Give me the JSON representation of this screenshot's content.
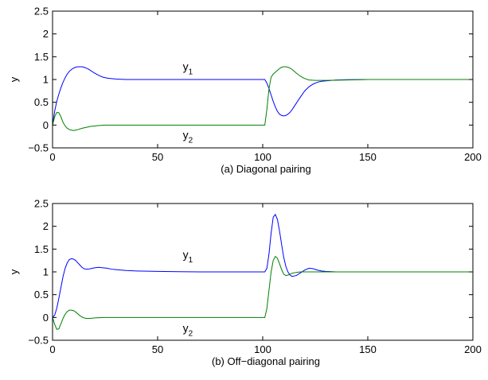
{
  "chart_data": [
    {
      "type": "line",
      "caption": "(a) Diagonal pairing",
      "ylabel": "y",
      "xlim": [
        0,
        200
      ],
      "ylim": [
        -0.5,
        2.5
      ],
      "xticks": [
        0,
        50,
        100,
        150,
        200
      ],
      "yticks": [
        -0.5,
        0,
        0.5,
        1,
        1.5,
        2,
        2.5
      ],
      "xtick_labels": [
        "0",
        "50",
        "100",
        "150",
        "200"
      ],
      "ytick_labels": [
        "−0.5",
        "0",
        "0.5",
        "1",
        "1.5",
        "2",
        "2.5"
      ],
      "grid": false,
      "series": [
        {
          "label": "y",
          "subscript": "1",
          "label_at": [
            62,
            1.2
          ],
          "color": "#0000ff",
          "x": [
            0,
            1,
            2,
            3,
            4,
            5,
            6,
            7,
            8,
            9,
            10,
            11,
            12,
            13,
            14,
            15,
            16,
            17,
            18,
            19,
            20,
            22,
            24,
            26,
            28,
            30,
            35,
            40,
            50,
            60,
            70,
            80,
            90,
            100,
            101,
            102,
            103,
            104,
            105,
            106,
            107,
            108,
            109,
            110,
            111,
            112,
            113,
            114,
            115,
            116,
            118,
            120,
            122,
            124,
            126,
            128,
            130,
            135,
            140,
            150,
            160,
            170,
            180,
            190,
            200
          ],
          "y": [
            0,
            0.3,
            0.52,
            0.68,
            0.82,
            0.94,
            1.04,
            1.12,
            1.18,
            1.22,
            1.25,
            1.27,
            1.28,
            1.28,
            1.28,
            1.27,
            1.25,
            1.23,
            1.2,
            1.17,
            1.14,
            1.09,
            1.05,
            1.03,
            1.02,
            1.01,
            1.0,
            1.0,
            1.0,
            1.0,
            1.0,
            1.0,
            1.0,
            1.0,
            1.0,
            0.92,
            0.8,
            0.66,
            0.52,
            0.4,
            0.3,
            0.24,
            0.21,
            0.2,
            0.21,
            0.24,
            0.28,
            0.34,
            0.41,
            0.48,
            0.62,
            0.75,
            0.84,
            0.9,
            0.94,
            0.96,
            0.97,
            0.99,
            0.995,
            1.0,
            1.0,
            1.0,
            1.0,
            1.0,
            1.0
          ]
        },
        {
          "label": "y",
          "subscript": "2",
          "label_at": [
            62,
            -0.3
          ],
          "color": "#008000",
          "x": [
            0,
            1,
            2,
            3,
            4,
            5,
            6,
            7,
            8,
            9,
            10,
            11,
            12,
            14,
            16,
            18,
            20,
            22,
            25,
            28,
            30,
            35,
            40,
            50,
            60,
            70,
            80,
            90,
            100,
            101,
            102,
            103,
            104,
            105,
            106,
            107,
            108,
            109,
            110,
            111,
            112,
            113,
            114,
            115,
            116,
            118,
            120,
            122,
            125,
            130,
            140,
            150,
            160,
            170,
            180,
            190,
            200
          ],
          "y": [
            0,
            0.18,
            0.28,
            0.27,
            0.18,
            0.06,
            -0.02,
            -0.07,
            -0.1,
            -0.11,
            -0.12,
            -0.11,
            -0.1,
            -0.07,
            -0.05,
            -0.03,
            -0.02,
            -0.01,
            0.0,
            0.0,
            0.0,
            0.0,
            0.0,
            0.0,
            0.0,
            0.0,
            0.0,
            0.0,
            0.0,
            0.0,
            0.35,
            0.8,
            1.05,
            1.12,
            1.16,
            1.2,
            1.24,
            1.27,
            1.28,
            1.28,
            1.27,
            1.25,
            1.22,
            1.18,
            1.14,
            1.07,
            1.02,
            0.99,
            0.98,
            0.98,
            0.99,
            1.0,
            1.0,
            1.0,
            1.0,
            1.0,
            1.0
          ]
        }
      ]
    },
    {
      "type": "line",
      "caption": "(b) Off−diagonal pairing",
      "ylabel": "y",
      "xlim": [
        0,
        200
      ],
      "ylim": [
        -0.5,
        2.5
      ],
      "xticks": [
        0,
        50,
        100,
        150,
        200
      ],
      "yticks": [
        -0.5,
        0,
        0.5,
        1,
        1.5,
        2,
        2.5
      ],
      "xtick_labels": [
        "0",
        "50",
        "100",
        "150",
        "200"
      ],
      "ytick_labels": [
        "−0.5",
        "0",
        "0.5",
        "1",
        "1.5",
        "2",
        "2.5"
      ],
      "grid": false,
      "series": [
        {
          "label": "y",
          "subscript": "1",
          "label_at": [
            62,
            1.3
          ],
          "color": "#0000ff",
          "x": [
            0,
            1,
            2,
            3,
            4,
            5,
            6,
            7,
            8,
            9,
            10,
            11,
            12,
            13,
            14,
            15,
            16,
            17,
            18,
            20,
            22,
            24,
            26,
            28,
            30,
            35,
            40,
            50,
            60,
            70,
            80,
            90,
            100,
            101,
            102,
            103,
            104,
            105,
            106,
            107,
            108,
            109,
            110,
            111,
            112,
            113,
            114,
            116,
            118,
            120,
            122,
            124,
            126,
            128,
            130,
            135,
            140,
            150,
            160,
            170,
            180,
            190,
            200
          ],
          "y": [
            0,
            0.05,
            0.2,
            0.42,
            0.66,
            0.9,
            1.08,
            1.2,
            1.27,
            1.29,
            1.28,
            1.25,
            1.2,
            1.15,
            1.1,
            1.07,
            1.06,
            1.06,
            1.07,
            1.09,
            1.1,
            1.09,
            1.08,
            1.06,
            1.05,
            1.03,
            1.02,
            1.01,
            1.005,
            1.0,
            1.0,
            1.0,
            1.0,
            1.0,
            1.08,
            1.4,
            1.85,
            2.2,
            2.26,
            2.15,
            1.9,
            1.6,
            1.32,
            1.12,
            1.0,
            0.93,
            0.9,
            0.92,
            0.98,
            1.04,
            1.08,
            1.07,
            1.04,
            1.02,
            1.01,
            1.0,
            1.0,
            1.0,
            1.0,
            1.0,
            1.0,
            1.0,
            1.0
          ]
        },
        {
          "label": "y",
          "subscript": "2",
          "label_at": [
            62,
            -0.32
          ],
          "color": "#008000",
          "x": [
            0,
            1,
            2,
            3,
            4,
            5,
            6,
            7,
            8,
            9,
            10,
            11,
            12,
            13,
            14,
            15,
            16,
            18,
            20,
            25,
            30,
            40,
            50,
            60,
            70,
            80,
            90,
            100,
            101,
            102,
            103,
            104,
            105,
            106,
            107,
            108,
            109,
            110,
            111,
            112,
            114,
            116,
            118,
            120,
            125,
            130,
            140,
            150,
            160,
            170,
            180,
            190,
            200
          ],
          "y": [
            0,
            -0.15,
            -0.26,
            -0.25,
            -0.14,
            -0.02,
            0.07,
            0.13,
            0.16,
            0.16,
            0.15,
            0.12,
            0.08,
            0.04,
            0.01,
            -0.01,
            -0.02,
            -0.02,
            -0.01,
            0.0,
            0.0,
            0.0,
            0.0,
            0.0,
            0.0,
            0.0,
            0.0,
            0.0,
            0.0,
            0.2,
            0.6,
            1.0,
            1.25,
            1.34,
            1.3,
            1.18,
            1.05,
            0.95,
            0.92,
            0.93,
            0.97,
            0.99,
            1.0,
            1.0,
            1.0,
            1.0,
            1.0,
            1.0,
            1.0,
            1.0,
            1.0,
            1.0,
            1.0
          ]
        }
      ]
    }
  ]
}
